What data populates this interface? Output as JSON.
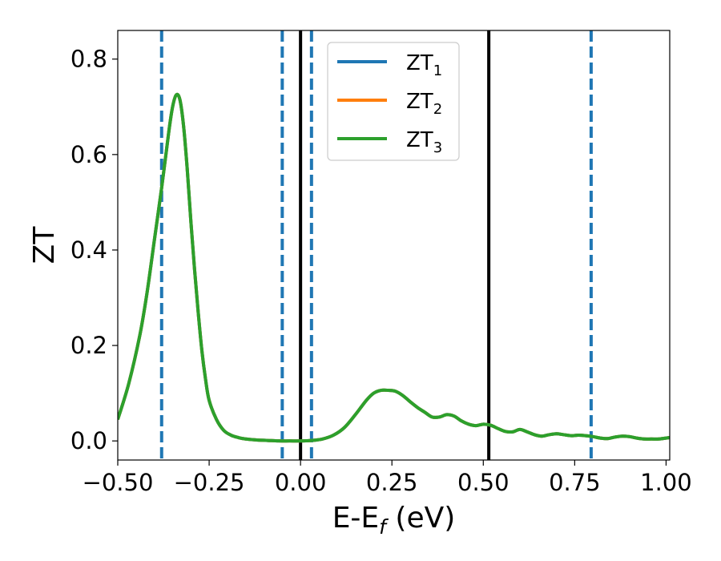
{
  "chart_data": {
    "type": "line",
    "title": "",
    "xlabel": "E-E_f (eV)",
    "xlabel_parts": {
      "main": "E-E",
      "sub": "f",
      "rest": " (eV)"
    },
    "ylabel": "ZT",
    "xlim": [
      -0.5,
      1.01
    ],
    "ylim": [
      -0.04,
      0.86
    ],
    "xticks": [
      -0.5,
      -0.25,
      0.0,
      0.25,
      0.5,
      0.75,
      1.0
    ],
    "xtick_labels": [
      "−0.50",
      "−0.25",
      "0.00",
      "0.25",
      "0.50",
      "0.75",
      "1.00"
    ],
    "yticks": [
      0.0,
      0.2,
      0.4,
      0.6,
      0.8
    ],
    "ytick_labels": [
      "0.0",
      "0.2",
      "0.4",
      "0.6",
      "0.8"
    ],
    "grid": false,
    "legend_position": "top-center",
    "colors": {
      "ZT1": "#1f77b4",
      "ZT2": "#ff7f0e",
      "ZT3": "#2ca02c",
      "solid_vline": "#000000",
      "dashed_vline": "#1f77b4"
    },
    "x": [
      -0.5,
      -0.47,
      -0.44,
      -0.42,
      -0.4,
      -0.38,
      -0.36,
      -0.35,
      -0.34,
      -0.33,
      -0.32,
      -0.31,
      -0.3,
      -0.29,
      -0.28,
      -0.27,
      -0.26,
      -0.25,
      -0.23,
      -0.21,
      -0.19,
      -0.17,
      -0.15,
      -0.12,
      -0.09,
      -0.06,
      -0.03,
      0.0,
      0.03,
      0.06,
      0.09,
      0.12,
      0.15,
      0.18,
      0.2,
      0.22,
      0.24,
      0.26,
      0.28,
      0.3,
      0.32,
      0.34,
      0.36,
      0.38,
      0.4,
      0.42,
      0.44,
      0.46,
      0.48,
      0.5,
      0.52,
      0.54,
      0.56,
      0.58,
      0.6,
      0.62,
      0.64,
      0.66,
      0.68,
      0.7,
      0.72,
      0.74,
      0.76,
      0.78,
      0.8,
      0.82,
      0.84,
      0.86,
      0.88,
      0.9,
      0.92,
      0.94,
      0.96,
      0.98,
      1.01
    ],
    "series": [
      {
        "name": "ZT_1",
        "name_parts": {
          "main": "ZT",
          "sub": "1"
        },
        "values": [
          0.045,
          0.12,
          0.22,
          0.31,
          0.42,
          0.53,
          0.65,
          0.7,
          0.725,
          0.715,
          0.66,
          0.57,
          0.46,
          0.36,
          0.27,
          0.19,
          0.13,
          0.085,
          0.045,
          0.022,
          0.012,
          0.007,
          0.004,
          0.002,
          0.001,
          0.0,
          0.0,
          0.0,
          0.001,
          0.004,
          0.012,
          0.028,
          0.055,
          0.085,
          0.1,
          0.106,
          0.106,
          0.104,
          0.095,
          0.082,
          0.07,
          0.06,
          0.05,
          0.05,
          0.055,
          0.052,
          0.042,
          0.035,
          0.032,
          0.035,
          0.033,
          0.026,
          0.02,
          0.019,
          0.024,
          0.019,
          0.013,
          0.01,
          0.013,
          0.015,
          0.013,
          0.011,
          0.012,
          0.011,
          0.009,
          0.006,
          0.005,
          0.008,
          0.01,
          0.009,
          0.006,
          0.004,
          0.004,
          0.004,
          0.007
        ]
      },
      {
        "name": "ZT_2",
        "name_parts": {
          "main": "ZT",
          "sub": "2"
        },
        "values": [
          0.045,
          0.12,
          0.22,
          0.31,
          0.42,
          0.53,
          0.65,
          0.7,
          0.725,
          0.715,
          0.66,
          0.57,
          0.46,
          0.36,
          0.27,
          0.19,
          0.13,
          0.085,
          0.045,
          0.022,
          0.012,
          0.007,
          0.004,
          0.002,
          0.001,
          0.0,
          0.0,
          0.0,
          0.001,
          0.004,
          0.012,
          0.028,
          0.055,
          0.085,
          0.1,
          0.106,
          0.106,
          0.104,
          0.095,
          0.082,
          0.07,
          0.06,
          0.05,
          0.05,
          0.055,
          0.052,
          0.042,
          0.035,
          0.032,
          0.035,
          0.033,
          0.026,
          0.02,
          0.019,
          0.024,
          0.019,
          0.013,
          0.01,
          0.013,
          0.015,
          0.013,
          0.011,
          0.012,
          0.011,
          0.009,
          0.006,
          0.005,
          0.008,
          0.01,
          0.009,
          0.006,
          0.004,
          0.004,
          0.004,
          0.007
        ]
      },
      {
        "name": "ZT_3",
        "name_parts": {
          "main": "ZT",
          "sub": "3"
        },
        "values": [
          0.045,
          0.12,
          0.22,
          0.31,
          0.42,
          0.53,
          0.65,
          0.7,
          0.725,
          0.715,
          0.66,
          0.57,
          0.46,
          0.36,
          0.27,
          0.19,
          0.13,
          0.085,
          0.045,
          0.022,
          0.012,
          0.007,
          0.004,
          0.002,
          0.001,
          0.0,
          0.0,
          0.0,
          0.001,
          0.004,
          0.012,
          0.028,
          0.055,
          0.085,
          0.1,
          0.106,
          0.106,
          0.104,
          0.095,
          0.082,
          0.07,
          0.06,
          0.05,
          0.05,
          0.055,
          0.052,
          0.042,
          0.035,
          0.032,
          0.035,
          0.033,
          0.026,
          0.02,
          0.019,
          0.024,
          0.019,
          0.013,
          0.01,
          0.013,
          0.015,
          0.013,
          0.011,
          0.012,
          0.011,
          0.009,
          0.006,
          0.005,
          0.008,
          0.01,
          0.009,
          0.006,
          0.004,
          0.004,
          0.004,
          0.007
        ]
      }
    ],
    "vertical_lines": [
      {
        "x": 0.0,
        "style": "solid"
      },
      {
        "x": 0.515,
        "style": "solid"
      },
      {
        "x": -0.38,
        "style": "dashed"
      },
      {
        "x": -0.05,
        "style": "dashed"
      },
      {
        "x": 0.03,
        "style": "dashed"
      },
      {
        "x": 0.795,
        "style": "dashed"
      }
    ]
  }
}
